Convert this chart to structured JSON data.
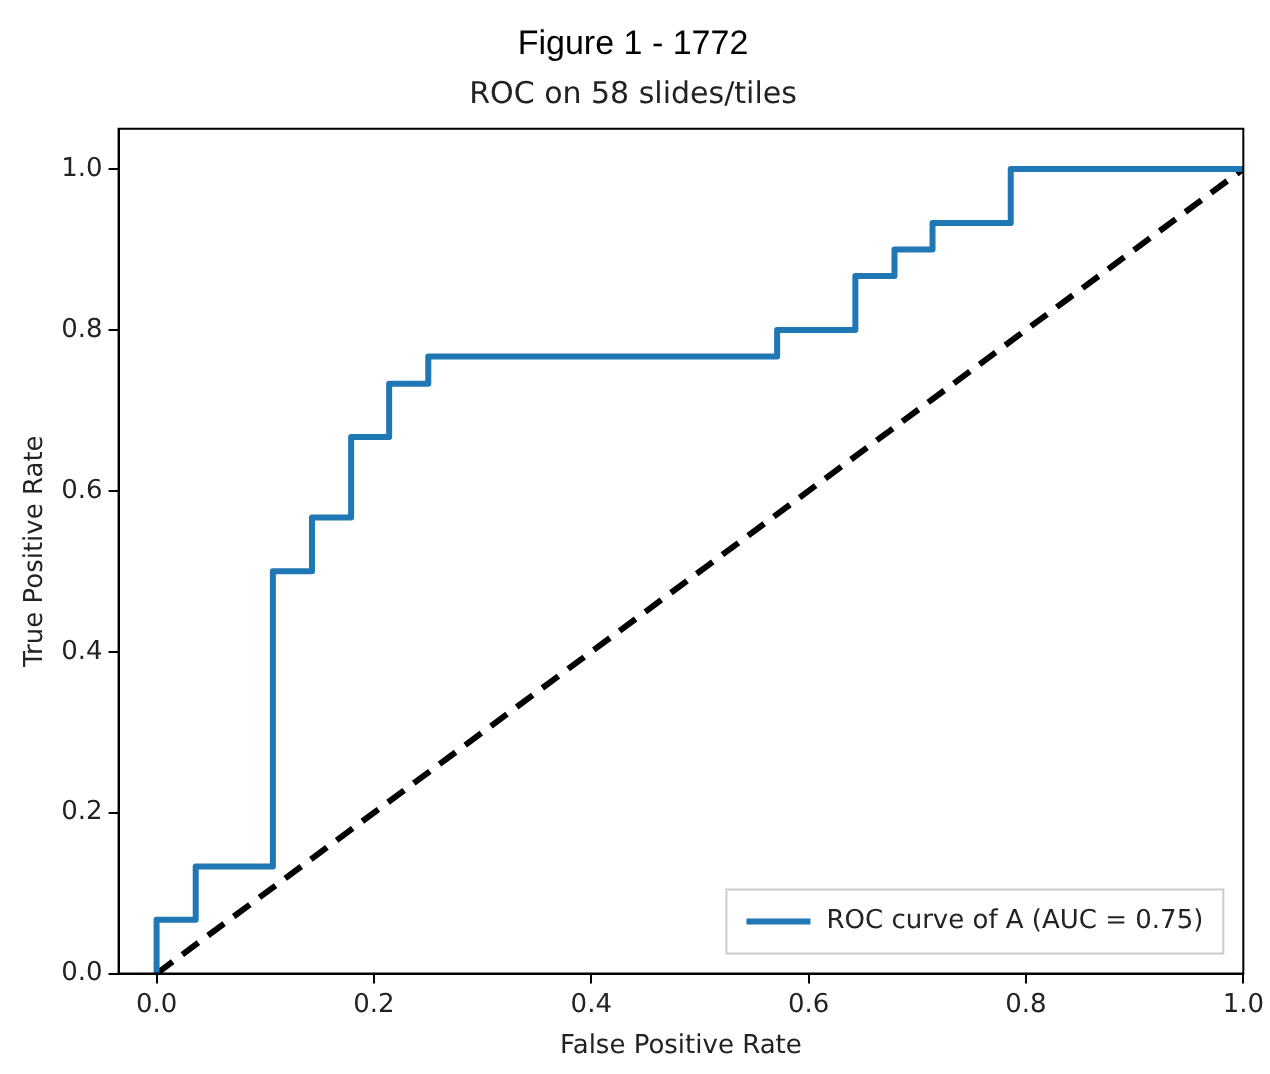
{
  "chart_data": {
    "type": "line",
    "title": "Figure 1 - 1772",
    "subtitle": "ROC on 58 slides/tiles",
    "xlabel": "False Positive Rate",
    "ylabel": "True Positive Rate",
    "xlim": [
      -0.035,
      1.0
    ],
    "ylim": [
      0,
      1.05
    ],
    "xticks": [
      {
        "value": 0,
        "label": "0.0"
      },
      {
        "value": 0.2,
        "label": "0.2"
      },
      {
        "value": 0.4,
        "label": "0.4"
      },
      {
        "value": 0.6,
        "label": "0.6"
      },
      {
        "value": 0.8,
        "label": "0.8"
      },
      {
        "value": 1,
        "label": "1.0"
      }
    ],
    "yticks": [
      {
        "value": 0,
        "label": "0.0"
      },
      {
        "value": 0.2,
        "label": "0.2"
      },
      {
        "value": 0.4,
        "label": "0.4"
      },
      {
        "value": 0.6,
        "label": "0.6"
      },
      {
        "value": 0.8,
        "label": "0.8"
      },
      {
        "value": 1,
        "label": "1.0"
      }
    ],
    "grid": false,
    "legend": "bottom right",
    "marker": "none",
    "series": [
      {
        "name": "ROC curve of A (AUC = 0.75)",
        "color": "#1f77b4",
        "line_style": "solid",
        "x": [
          0,
          0,
          0.036,
          0.036,
          0.107,
          0.107,
          0.143,
          0.143,
          0.179,
          0.179,
          0.214,
          0.214,
          0.25,
          0.25,
          0.571,
          0.571,
          0.643,
          0.643,
          0.679,
          0.679,
          0.714,
          0.714,
          0.786,
          0.786,
          1
        ],
        "values": [
          0,
          0.067,
          0.067,
          0.133,
          0.133,
          0.5,
          0.5,
          0.567,
          0.567,
          0.667,
          0.667,
          0.733,
          0.733,
          0.767,
          0.767,
          0.8,
          0.8,
          0.867,
          0.867,
          0.9,
          0.9,
          0.933,
          0.933,
          1,
          1
        ]
      },
      {
        "color": "#000000",
        "line_style": "dashed",
        "x": [
          0,
          1
        ],
        "values": [
          0,
          1
        ]
      }
    ]
  }
}
